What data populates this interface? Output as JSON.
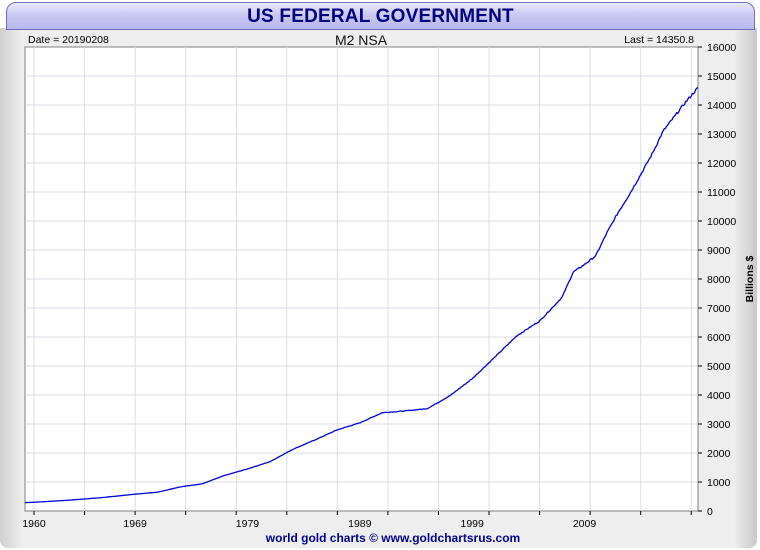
{
  "header": {
    "title": "US FEDERAL GOVERNMENT"
  },
  "info": {
    "date_label": "Date = 20190208",
    "last_label": "Last = 14350.8"
  },
  "footer": {
    "credit": "world gold charts © www.goldchartsrus.com"
  },
  "colors": {
    "line": "#0000d8",
    "title": "#000080",
    "grid": "#d8dde8"
  },
  "chart_data": {
    "type": "line",
    "title": "M2 NSA",
    "xlabel": "",
    "ylabel": "Billions $",
    "xlim": [
      1959.2,
      2019.1
    ],
    "ylim": [
      0,
      16000
    ],
    "x_ticks": [
      1960,
      1969,
      1979,
      1989,
      1999,
      2009
    ],
    "y_ticks": [
      0,
      1000,
      2000,
      3000,
      4000,
      5000,
      6000,
      7000,
      8000,
      9000,
      10000,
      11000,
      12000,
      13000,
      14000,
      15000,
      16000
    ],
    "grid": true,
    "series": [
      {
        "name": "M2 NSA",
        "x": [
          1959.2,
          1960,
          1963,
          1966,
          1969,
          1971,
          1973,
          1975,
          1977,
          1979,
          1981,
          1983,
          1985,
          1987,
          1989,
          1991,
          1993,
          1995,
          1997,
          1999,
          2001,
          2003,
          2005,
          2007,
          2008,
          2009,
          2010,
          2011,
          2012,
          2013,
          2014,
          2015,
          2016,
          2017,
          2018,
          2019.1
        ],
        "values": [
          290,
          300,
          370,
          460,
          580,
          650,
          830,
          940,
          1230,
          1450,
          1700,
          2120,
          2450,
          2800,
          3040,
          3390,
          3450,
          3530,
          3970,
          4560,
          5300,
          6050,
          6550,
          7370,
          8240,
          8500,
          8800,
          9600,
          10300,
          10920,
          11600,
          12300,
          13100,
          13600,
          14100,
          14600
        ]
      }
    ]
  }
}
